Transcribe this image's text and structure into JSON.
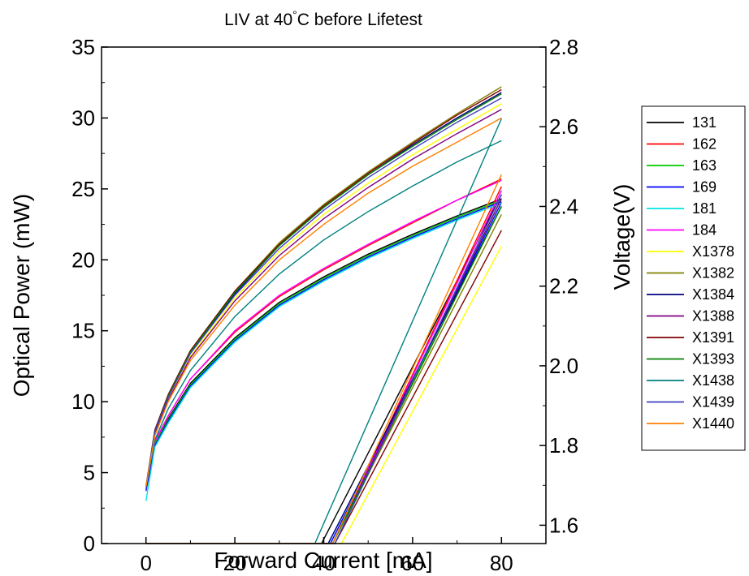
{
  "chart_data": {
    "type": "line",
    "title": "LIV at 40°C before Lifetest",
    "xlabel": "Forward Current [mA]",
    "ylabel": "Optical Power (mW)",
    "y2label": "Voltage(V)",
    "xlim": [
      -10,
      90
    ],
    "ylim": [
      0,
      35
    ],
    "y2lim": [
      1.554,
      2.8
    ],
    "xticks": [
      "0",
      "20",
      "40",
      "60",
      "80"
    ],
    "yticks": [
      "0",
      "5",
      "10",
      "15",
      "20",
      "25",
      "30",
      "35"
    ],
    "y2ticks": [
      "1.6",
      "1.8",
      "2.0",
      "2.2",
      "2.4",
      "2.6",
      "2.8"
    ],
    "grid": false,
    "legend_position": "right",
    "series": [
      {
        "name": "131",
        "color": "#000000",
        "voltage": {
          "x0": 39.5,
          "v80": 2.43
        },
        "power": [
          [
            0,
            4
          ],
          [
            2,
            7
          ],
          [
            5,
            8.8
          ],
          [
            10,
            11.3
          ],
          [
            20,
            14.5
          ],
          [
            30,
            17
          ],
          [
            40,
            18.8
          ],
          [
            50,
            20.4
          ],
          [
            60,
            21.8
          ],
          [
            70,
            23.1
          ],
          [
            80,
            24.3
          ]
        ]
      },
      {
        "name": "162",
        "color": "#ff0000",
        "voltage": {
          "x0": 42,
          "v80": 2.45
        },
        "power": [
          [
            0,
            4
          ],
          [
            2,
            7.2
          ],
          [
            5,
            9
          ],
          [
            10,
            11.6
          ],
          [
            20,
            14.9
          ],
          [
            30,
            17.4
          ],
          [
            40,
            19.3
          ],
          [
            50,
            21
          ],
          [
            60,
            22.6
          ],
          [
            70,
            24.2
          ],
          [
            80,
            25.7
          ]
        ]
      },
      {
        "name": "163",
        "color": "#00cc00",
        "voltage": {
          "x0": 42.5,
          "v80": 2.42
        },
        "power": [
          [
            0,
            3.8
          ],
          [
            2,
            7
          ],
          [
            5,
            8.7
          ],
          [
            10,
            11.2
          ],
          [
            20,
            14.4
          ],
          [
            30,
            16.9
          ],
          [
            40,
            18.7
          ],
          [
            50,
            20.3
          ],
          [
            60,
            21.7
          ],
          [
            70,
            23
          ],
          [
            80,
            24.2
          ]
        ]
      },
      {
        "name": "169",
        "color": "#0000ff",
        "voltage": {
          "x0": 41.5,
          "v80": 2.41
        },
        "power": [
          [
            0,
            3.7
          ],
          [
            2,
            6.9
          ],
          [
            5,
            8.6
          ],
          [
            10,
            11.1
          ],
          [
            20,
            14.3
          ],
          [
            30,
            16.8
          ],
          [
            40,
            18.6
          ],
          [
            50,
            20.2
          ],
          [
            60,
            21.6
          ],
          [
            70,
            22.9
          ],
          [
            80,
            24.1
          ]
        ]
      },
      {
        "name": "181",
        "color": "#00e5e5",
        "voltage": {
          "x0": 41,
          "v80": 2.4
        },
        "power": [
          [
            0,
            3
          ],
          [
            2,
            6.8
          ],
          [
            5,
            8.5
          ],
          [
            10,
            11
          ],
          [
            20,
            14.2
          ],
          [
            30,
            16.7
          ],
          [
            40,
            18.5
          ],
          [
            50,
            20.1
          ],
          [
            60,
            21.5
          ],
          [
            70,
            22.8
          ],
          [
            80,
            24
          ]
        ]
      },
      {
        "name": "184",
        "color": "#ff00ff",
        "voltage": {
          "x0": 42,
          "v80": 2.44
        },
        "power": [
          [
            0,
            4
          ],
          [
            2,
            7.2
          ],
          [
            5,
            9
          ],
          [
            10,
            11.6
          ],
          [
            20,
            15
          ],
          [
            30,
            17.5
          ],
          [
            40,
            19.4
          ],
          [
            50,
            21.1
          ],
          [
            60,
            22.7
          ],
          [
            70,
            24.2
          ],
          [
            80,
            25.6
          ]
        ]
      },
      {
        "name": "X1378",
        "color": "#ffff00",
        "voltage": {
          "x0": 44,
          "v80": 2.3
        },
        "power": [
          [
            0,
            4
          ],
          [
            2,
            7.8
          ],
          [
            5,
            10.2
          ],
          [
            10,
            13.2
          ],
          [
            20,
            17.3
          ],
          [
            30,
            20.6
          ],
          [
            40,
            23.2
          ],
          [
            50,
            25.4
          ],
          [
            60,
            27.4
          ],
          [
            70,
            29.2
          ],
          [
            80,
            31
          ]
        ]
      },
      {
        "name": "X1382",
        "color": "#808000",
        "voltage": {
          "x0": 42,
          "v80": 2.38
        },
        "power": [
          [
            0,
            4
          ],
          [
            2,
            8
          ],
          [
            5,
            10.5
          ],
          [
            10,
            13.6
          ],
          [
            20,
            17.8
          ],
          [
            30,
            21.2
          ],
          [
            40,
            23.9
          ],
          [
            50,
            26.2
          ],
          [
            60,
            28.3
          ],
          [
            70,
            30.3
          ],
          [
            80,
            32.2
          ]
        ]
      },
      {
        "name": "X1384",
        "color": "#000080",
        "voltage": {
          "x0": 41,
          "v80": 2.4
        },
        "power": [
          [
            0,
            4
          ],
          [
            2,
            7.9
          ],
          [
            5,
            10.4
          ],
          [
            10,
            13.5
          ],
          [
            20,
            17.6
          ],
          [
            30,
            21
          ],
          [
            40,
            23.7
          ],
          [
            50,
            26
          ],
          [
            60,
            28.1
          ],
          [
            70,
            30
          ],
          [
            80,
            31.8
          ]
        ]
      },
      {
        "name": "X1388",
        "color": "#800080",
        "voltage": {
          "x0": 42,
          "v80": 2.42
        },
        "power": [
          [
            0,
            4
          ],
          [
            2,
            7.7
          ],
          [
            5,
            10.1
          ],
          [
            10,
            13.1
          ],
          [
            20,
            17.1
          ],
          [
            30,
            20.3
          ],
          [
            40,
            22.9
          ],
          [
            50,
            25.1
          ],
          [
            60,
            27.1
          ],
          [
            70,
            28.9
          ],
          [
            80,
            30.6
          ]
        ]
      },
      {
        "name": "X1391",
        "color": "#800000",
        "voltage": {
          "x0": 42.5,
          "v80": 2.34
        },
        "power": [
          [
            0,
            4
          ],
          [
            2,
            8
          ],
          [
            5,
            10.5
          ],
          [
            10,
            13.6
          ],
          [
            20,
            17.8
          ],
          [
            30,
            21.1
          ],
          [
            40,
            23.8
          ],
          [
            50,
            26.1
          ],
          [
            60,
            28.2
          ],
          [
            70,
            30.2
          ],
          [
            80,
            32
          ]
        ]
      },
      {
        "name": "X1393",
        "color": "#008000",
        "voltage": {
          "x0": 42,
          "v80": 2.4
        },
        "power": [
          [
            0,
            4
          ],
          [
            2,
            7.9
          ],
          [
            5,
            10.4
          ],
          [
            10,
            13.5
          ],
          [
            20,
            17.7
          ],
          [
            30,
            21
          ],
          [
            40,
            23.7
          ],
          [
            50,
            26
          ],
          [
            60,
            28
          ],
          [
            70,
            29.9
          ],
          [
            80,
            31.7
          ]
        ]
      },
      {
        "name": "X1438",
        "color": "#008080",
        "voltage": {
          "x0": 38,
          "v80": 2.62
        },
        "power": [
          [
            0,
            4
          ],
          [
            2,
            7.3
          ],
          [
            5,
            9.5
          ],
          [
            10,
            12.2
          ],
          [
            20,
            16
          ],
          [
            30,
            19
          ],
          [
            40,
            21.4
          ],
          [
            50,
            23.4
          ],
          [
            60,
            25.2
          ],
          [
            70,
            26.9
          ],
          [
            80,
            28.4
          ]
        ]
      },
      {
        "name": "X1439",
        "color": "#4040c0",
        "voltage": {
          "x0": 42.5,
          "v80": 2.43
        },
        "power": [
          [
            0,
            4
          ],
          [
            2,
            7.9
          ],
          [
            5,
            10.3
          ],
          [
            10,
            13.4
          ],
          [
            20,
            17.5
          ],
          [
            30,
            20.8
          ],
          [
            40,
            23.5
          ],
          [
            50,
            25.8
          ],
          [
            60,
            27.8
          ],
          [
            70,
            29.7
          ],
          [
            80,
            31.4
          ]
        ]
      },
      {
        "name": "X1440",
        "color": "#ff8000",
        "voltage": {
          "x0": 42,
          "v80": 2.48
        },
        "power": [
          [
            0,
            4
          ],
          [
            2,
            7.6
          ],
          [
            5,
            10
          ],
          [
            10,
            12.9
          ],
          [
            20,
            16.8
          ],
          [
            30,
            20
          ],
          [
            40,
            22.5
          ],
          [
            50,
            24.7
          ],
          [
            60,
            26.6
          ],
          [
            70,
            28.3
          ],
          [
            80,
            30
          ]
        ]
      }
    ]
  }
}
